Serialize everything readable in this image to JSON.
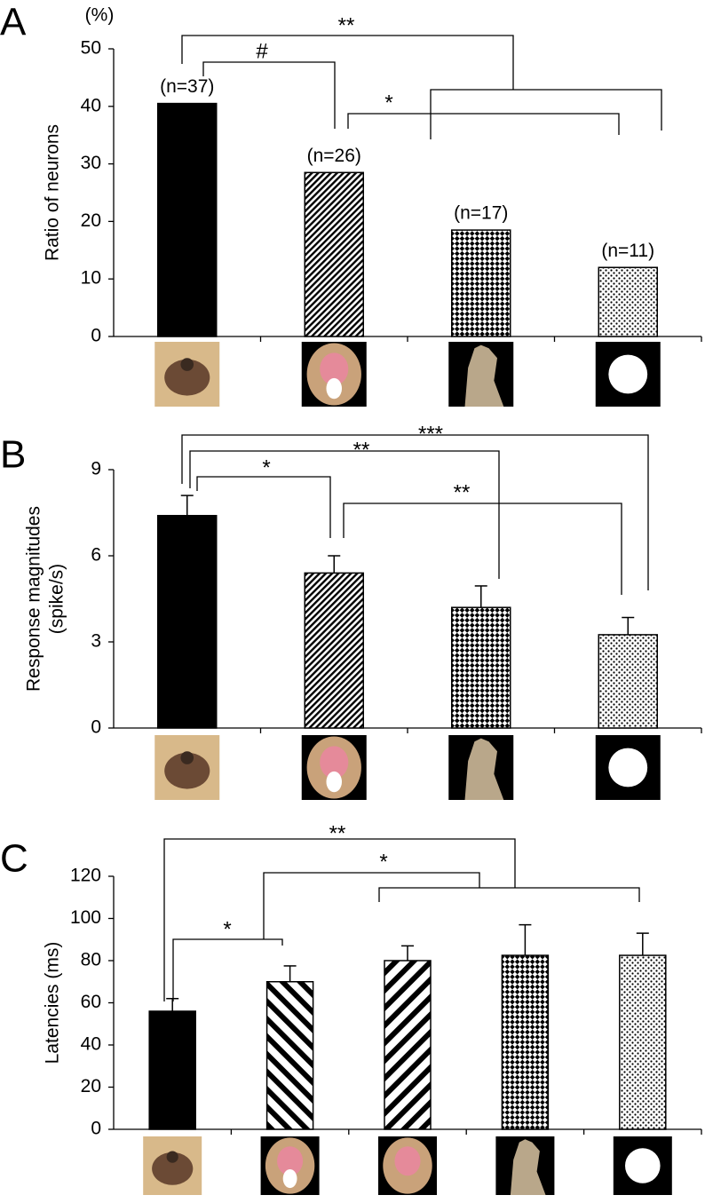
{
  "chart_data": [
    {
      "type": "bar",
      "panel": "A",
      "ylabel": [
        "Ratio of neurons"
      ],
      "yunit": "(%)",
      "categories": [
        null,
        null,
        null,
        null
      ],
      "values": [
        40.5,
        28.5,
        18.5,
        12
      ],
      "bar_labels": [
        "(n=37)",
        "(n=26)",
        "(n=17)",
        "(n=11)"
      ],
      "significance": [
        "**",
        "#",
        "*"
      ],
      "ylim": [
        0,
        50
      ],
      "yticks": [
        0,
        10,
        20,
        30,
        40,
        50
      ],
      "color": "#000000"
    },
    {
      "type": "bar",
      "panel": "B",
      "ylabel": [
        "Response magnitudes",
        "(spike/s)"
      ],
      "categories": [
        null,
        null,
        null,
        null
      ],
      "values": [
        7.4,
        5.4,
        4.2,
        3.25
      ],
      "errors": [
        0.7,
        0.6,
        0.75,
        0.6
      ],
      "significance": [
        "***",
        "**",
        "*",
        "**"
      ],
      "ylim": [
        0,
        9
      ],
      "yticks": [
        0,
        3,
        6,
        9
      ],
      "color": "#000000"
    },
    {
      "type": "bar",
      "panel": "C",
      "ylabel": [
        "Latencies (ms)"
      ],
      "categories": [
        null,
        null,
        null,
        null,
        null
      ],
      "values": [
        56,
        70,
        80,
        82.5,
        82.5
      ],
      "errors": [
        6,
        7.5,
        7,
        14.5,
        10.5
      ],
      "significance": [
        "**",
        "*",
        "*"
      ],
      "ylim": [
        0,
        120
      ],
      "yticks": [
        0,
        20,
        40,
        60,
        80,
        100,
        120
      ],
      "color": "#000000"
    }
  ]
}
